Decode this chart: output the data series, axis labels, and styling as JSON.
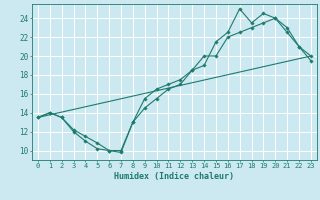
{
  "xlabel": "Humidex (Indice chaleur)",
  "bg_color": "#cce8f0",
  "grid_color": "#ffffff",
  "line_color": "#1e7b6e",
  "xlim": [
    -0.5,
    23.5
  ],
  "ylim": [
    9.0,
    25.5
  ],
  "xticks": [
    0,
    1,
    2,
    3,
    4,
    5,
    6,
    7,
    8,
    9,
    10,
    11,
    12,
    13,
    14,
    15,
    16,
    17,
    18,
    19,
    20,
    21,
    22,
    23
  ],
  "yticks": [
    10,
    12,
    14,
    16,
    18,
    20,
    22,
    24
  ],
  "line1_x": [
    0,
    1,
    2,
    3,
    4,
    5,
    6,
    7,
    8,
    9,
    10,
    11,
    12,
    13,
    14,
    15,
    16,
    17,
    18,
    19,
    20,
    21,
    22,
    23
  ],
  "line1_y": [
    13.5,
    14.0,
    13.5,
    12.0,
    11.0,
    10.2,
    10.0,
    10.0,
    13.0,
    14.5,
    15.5,
    16.5,
    17.0,
    18.5,
    19.0,
    21.5,
    22.5,
    25.0,
    23.5,
    24.5,
    24.0,
    22.5,
    21.0,
    19.5
  ],
  "line2_x": [
    0,
    1,
    2,
    3,
    4,
    5,
    6,
    7,
    8,
    9,
    10,
    11,
    12,
    13,
    14,
    15,
    16,
    17,
    18,
    19,
    20,
    21,
    22,
    23
  ],
  "line2_y": [
    13.5,
    14.0,
    13.5,
    12.2,
    11.5,
    10.8,
    10.0,
    9.8,
    13.0,
    15.5,
    16.5,
    17.0,
    17.5,
    18.5,
    20.0,
    20.0,
    22.0,
    22.5,
    23.0,
    23.5,
    24.0,
    23.0,
    21.0,
    20.0
  ],
  "line3_x": [
    0,
    23
  ],
  "line3_y": [
    13.5,
    20.0
  ],
  "xlabel_fontsize": 6,
  "tick_fontsize": 5,
  "ytick_fontsize": 5.5
}
